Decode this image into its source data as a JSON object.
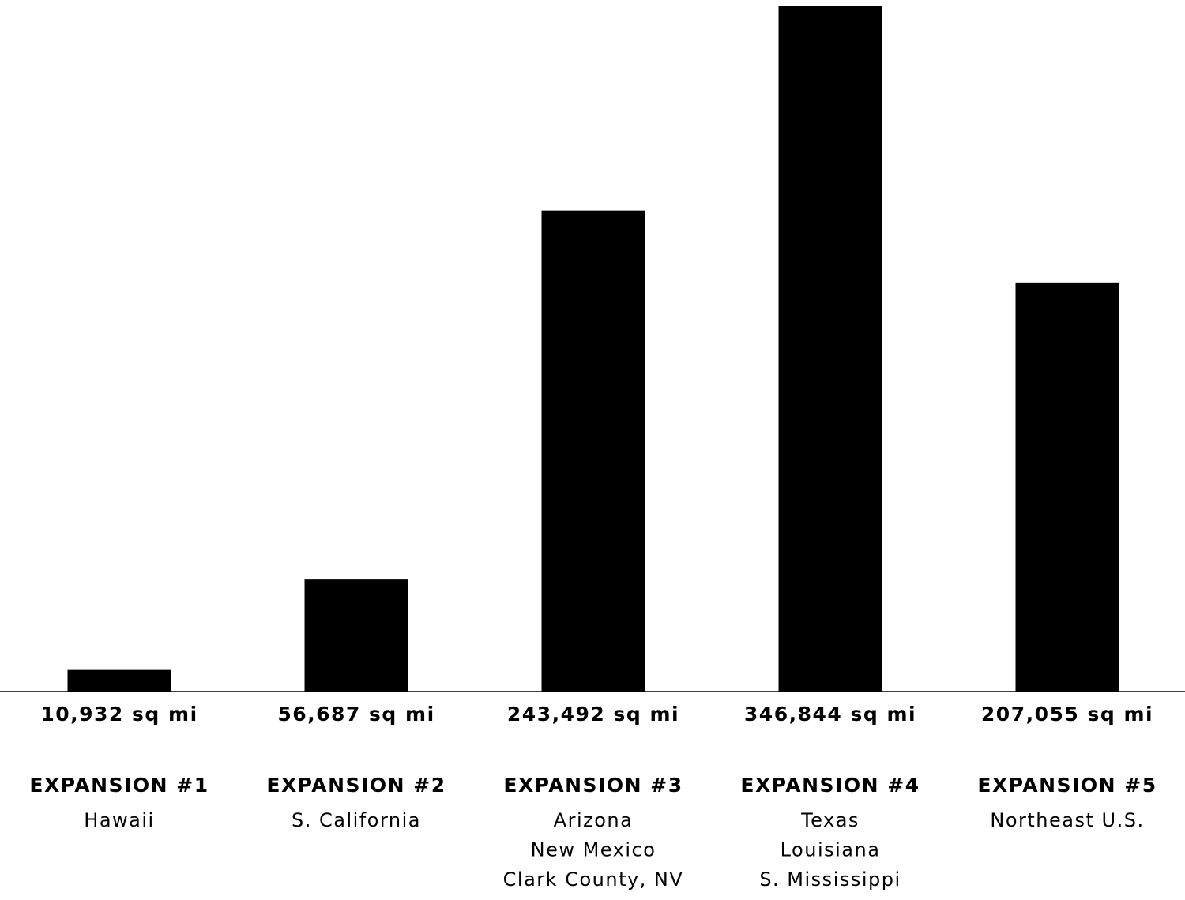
{
  "chart_data": {
    "type": "bar",
    "categories": [
      "EXPANSION #1",
      "EXPANSION #2",
      "EXPANSION #3",
      "EXPANSION #4",
      "EXPANSION #5"
    ],
    "values": [
      10932,
      56687,
      243492,
      346844,
      207055
    ],
    "value_labels": [
      "10,932 sq mi",
      "56,687 sq mi",
      "243,492 sq mi",
      "346,844 sq mi",
      "207,055 sq mi"
    ],
    "regions": [
      [
        "Hawaii"
      ],
      [
        "S. California"
      ],
      [
        "Arizona",
        "New Mexico",
        "Clark County, NV"
      ],
      [
        "Texas",
        "Louisiana",
        "S. Mississippi"
      ],
      [
        "Northeast U.S."
      ]
    ],
    "title": "",
    "xlabel": "",
    "ylabel": "",
    "ylim": [
      0,
      346844
    ],
    "grid": false,
    "legend": "none",
    "bar_color": "#000000",
    "baseline_color": "#000000"
  }
}
